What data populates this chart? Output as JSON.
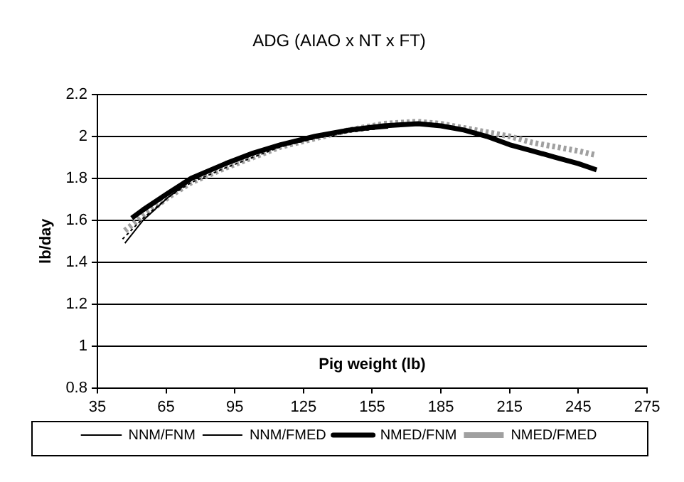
{
  "chart_data": {
    "type": "line",
    "title": "ADG (AIAO x NT x FT)",
    "xlabel": "Pig weight (lb)",
    "ylabel": "lb/day",
    "xlim": [
      35,
      275
    ],
    "xticks": [
      35,
      65,
      95,
      125,
      155,
      185,
      215,
      245,
      275
    ],
    "ylim": [
      0.8,
      2.2
    ],
    "yticks": [
      0.8,
      1,
      1.2,
      1.4,
      1.6,
      1.8,
      2,
      2.2
    ],
    "grid": "y",
    "legend": "bottom",
    "marker": "none",
    "series": [
      {
        "name": "NNM/FNM",
        "color": "#000000",
        "line_style": "solid",
        "x": [
          47,
          55,
          66,
          76,
          87,
          97,
          110,
          120,
          135,
          150,
          162
        ],
        "values": [
          1.49,
          1.6,
          1.71,
          1.79,
          1.85,
          1.89,
          1.95,
          1.98,
          2.01,
          2.03,
          2.04
        ]
      },
      {
        "name": "NNM/FMED",
        "color": "#000000",
        "line_style": "dotted",
        "x": [
          46,
          55,
          66,
          76,
          91,
          103,
          115,
          130,
          145,
          160,
          165
        ],
        "values": [
          1.51,
          1.61,
          1.71,
          1.78,
          1.85,
          1.9,
          1.95,
          1.99,
          2.02,
          2.04,
          2.05
        ]
      },
      {
        "name": "NMED/FNM",
        "color": "#000000",
        "line_style": "solid",
        "x": [
          50,
          55,
          66,
          76,
          91,
          103,
          115,
          130,
          145,
          160,
          175,
          185,
          195,
          205,
          215,
          225,
          235,
          245,
          253
        ],
        "values": [
          1.61,
          1.65,
          1.73,
          1.8,
          1.87,
          1.92,
          1.96,
          2.0,
          2.03,
          2.05,
          2.06,
          2.05,
          2.03,
          2.0,
          1.96,
          1.93,
          1.9,
          1.87,
          1.84
        ]
      },
      {
        "name": "NMED/FMED",
        "color": "#a0a0a0",
        "line_style": "dotted",
        "x": [
          47,
          55,
          66,
          76,
          91,
          103,
          115,
          130,
          145,
          160,
          175,
          185,
          195,
          205,
          215,
          225,
          235,
          245,
          253
        ],
        "values": [
          1.55,
          1.62,
          1.71,
          1.78,
          1.85,
          1.9,
          1.95,
          1.99,
          2.03,
          2.06,
          2.07,
          2.06,
          2.04,
          2.02,
          2.0,
          1.97,
          1.95,
          1.93,
          1.91
        ]
      }
    ]
  }
}
